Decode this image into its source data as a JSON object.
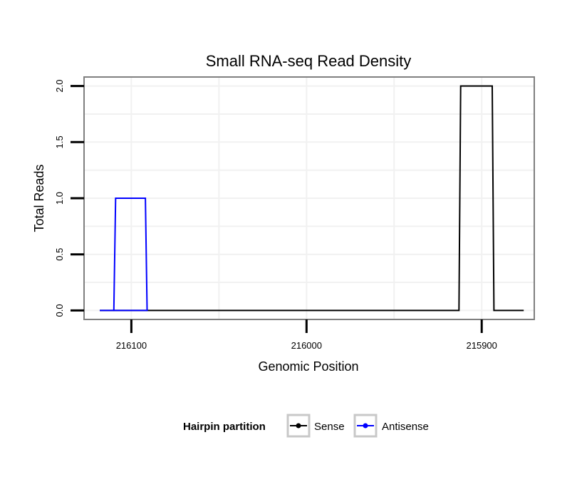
{
  "chart_data": {
    "type": "line",
    "title": "Small RNA-seq Read Density",
    "xlabel": "Genomic Position",
    "ylabel": "Total Reads",
    "x_reversed": true,
    "xlim": [
      216127,
      215870
    ],
    "ylim": [
      -0.08,
      2.08
    ],
    "x_ticks": [
      216100,
      216000,
      215900
    ],
    "x_tick_labels": [
      "216100",
      "216000",
      "215900"
    ],
    "x_minor_ticks": [
      216050,
      215950
    ],
    "y_ticks": [
      0,
      0.5,
      1,
      1.5,
      2
    ],
    "y_tick_labels": [
      "0.0",
      "0.5",
      "1.0",
      "1.5",
      "2.0"
    ],
    "legend": {
      "title": "Hairpin partition",
      "position": "bottom",
      "entries": [
        {
          "name": "Sense",
          "color": "#000000"
        },
        {
          "name": "Antisense",
          "color": "#0000ff"
        }
      ]
    },
    "series": [
      {
        "name": "Antisense",
        "color": "#0000ff",
        "x": [
          216118,
          216110,
          216109,
          216092,
          216091,
          216112,
          216113,
          216094,
          216093,
          216114,
          216115
        ],
        "y": [
          0,
          0,
          1,
          1,
          0,
          0,
          0,
          0,
          0,
          0,
          0
        ]
      },
      {
        "name": "Sense",
        "color": "#000000",
        "x": [
          216118,
          215991,
          215990,
          215970,
          215969,
          215952,
          215951,
          215931,
          215930,
          215913,
          215912,
          215894,
          215893,
          215876
        ],
        "y": [
          0,
          0,
          0,
          0,
          0,
          0,
          0,
          0,
          0,
          0,
          2,
          2,
          0,
          0
        ]
      }
    ]
  }
}
